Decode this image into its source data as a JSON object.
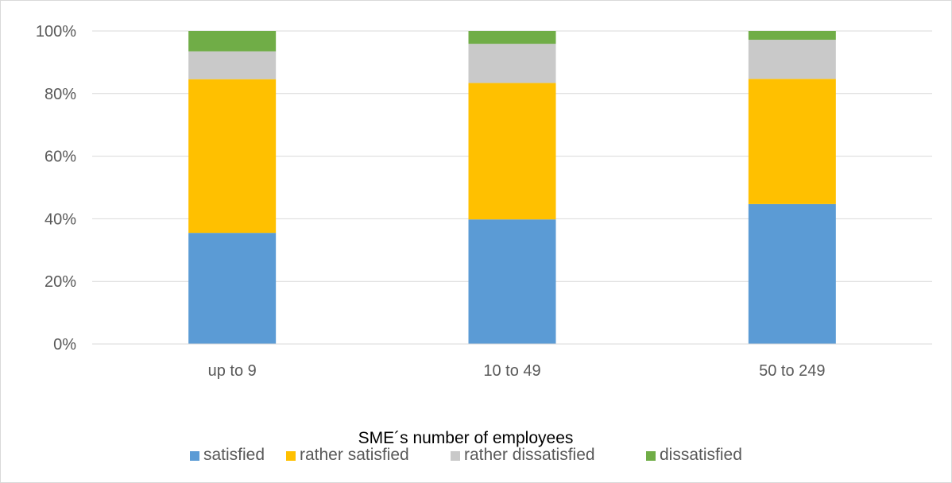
{
  "chart_data": {
    "type": "bar",
    "stacked": true,
    "percent": true,
    "categories": [
      "up to 9",
      "10 to 49",
      "50 to 249"
    ],
    "series": [
      {
        "name": "satisfied",
        "color": "#5b9bd5",
        "values": [
          35.5,
          39.8,
          44.7
        ]
      },
      {
        "name": "rather satisfied",
        "color": "#ffc000",
        "values": [
          49.1,
          43.6,
          40.0
        ]
      },
      {
        "name": "rather dissatisfied",
        "color": "#c9c9c9",
        "values": [
          8.9,
          12.5,
          12.5
        ]
      },
      {
        "name": "dissatisfied",
        "color": "#70ad47",
        "values": [
          6.5,
          4.1,
          2.8
        ]
      }
    ],
    "title": "",
    "xlabel": "SME´s number of employees",
    "ylabel": "",
    "ylim": [
      0,
      100
    ],
    "yticks": [
      "0%",
      "20%",
      "40%",
      "60%",
      "80%",
      "100%"
    ],
    "grid": true,
    "legend_position": "bottom"
  }
}
